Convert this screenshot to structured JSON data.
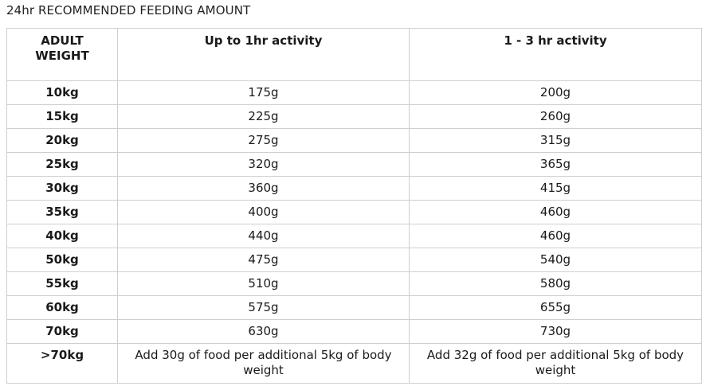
{
  "caption": "24hr RECOMMENDED FEEDING AMOUNT",
  "headers": {
    "weight_line1": "ADULT",
    "weight_line2": "WEIGHT",
    "col2": "Up to 1hr activity",
    "col3": "1 - 3 hr activity"
  },
  "rows": [
    {
      "weight": "10kg",
      "up_to_1hr": "175g",
      "one_to_3hr": "200g"
    },
    {
      "weight": "15kg",
      "up_to_1hr": "225g",
      "one_to_3hr": "260g"
    },
    {
      "weight": "20kg",
      "up_to_1hr": "275g",
      "one_to_3hr": "315g"
    },
    {
      "weight": "25kg",
      "up_to_1hr": "320g",
      "one_to_3hr": "365g"
    },
    {
      "weight": "30kg",
      "up_to_1hr": "360g",
      "one_to_3hr": "415g"
    },
    {
      "weight": "35kg",
      "up_to_1hr": "400g",
      "one_to_3hr": "460g"
    },
    {
      "weight": "40kg",
      "up_to_1hr": "440g",
      "one_to_3hr": "460g"
    },
    {
      "weight": "50kg",
      "up_to_1hr": "475g",
      "one_to_3hr": "540g"
    },
    {
      "weight": "55kg",
      "up_to_1hr": "510g",
      "one_to_3hr": "580g"
    },
    {
      "weight": "60kg",
      "up_to_1hr": "575g",
      "one_to_3hr": "655g"
    },
    {
      "weight": "70kg",
      "up_to_1hr": "630g",
      "one_to_3hr": "730g"
    },
    {
      "weight": ">70kg",
      "up_to_1hr": "Add 30g of food per additional 5kg of body weight",
      "one_to_3hr": "Add 32g of food per additional 5kg of body weight"
    }
  ],
  "colors": {
    "border": "#cfcfcf",
    "text": "#1a1a1a",
    "background": "#ffffff"
  }
}
